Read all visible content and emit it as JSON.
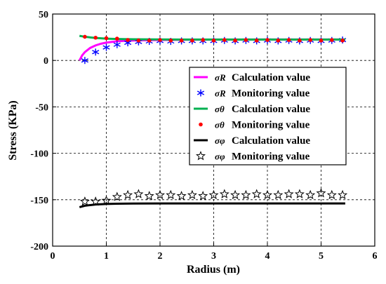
{
  "chart_data": {
    "type": "line",
    "title": "",
    "xlabel": "Radius (m)",
    "ylabel": "Stress (KPa)",
    "xlim": [
      0,
      6
    ],
    "ylim": [
      -200,
      50
    ],
    "xticks": [
      "0",
      "1",
      "2",
      "3",
      "4",
      "5",
      "6"
    ],
    "yticks": [
      "50",
      "0",
      "-50",
      "-100",
      "-150",
      "-200"
    ],
    "grid": true,
    "legend_position": "right",
    "series": [
      {
        "symbol": "σR",
        "name": "Calculation value",
        "style": "line",
        "color": "#ff00ff",
        "x": [
          0.5,
          0.55,
          0.6,
          0.7,
          0.8,
          0.9,
          1.0,
          1.2,
          1.4,
          1.6,
          2.0,
          2.5,
          3.0,
          4.0,
          5.0,
          5.45
        ],
        "y": [
          0,
          5.5,
          9,
          13.5,
          16.2,
          18,
          19.2,
          20.6,
          21.3,
          21.7,
          22.1,
          22.3,
          22.4,
          22.5,
          22.5,
          22.5
        ]
      },
      {
        "symbol": "σR",
        "name": "Monitoring value",
        "style": "marker-asterisk",
        "color": "#0000ff",
        "x": [
          0.6,
          0.8,
          1.0,
          1.2,
          1.4,
          1.6,
          1.8,
          2.0,
          2.2,
          2.4,
          2.6,
          2.8,
          3.0,
          3.2,
          3.4,
          3.6,
          3.8,
          4.0,
          4.2,
          4.4,
          4.6,
          4.8,
          5.0,
          5.2,
          5.4
        ],
        "y": [
          0,
          9,
          14,
          17,
          19,
          20,
          20.5,
          21,
          20.5,
          21,
          21,
          21,
          21,
          21.5,
          21,
          21.5,
          21,
          21.5,
          21,
          21.5,
          21,
          21.5,
          21,
          21.5,
          22
        ]
      },
      {
        "symbol": "σθ",
        "name": "Calculation value",
        "style": "line",
        "color": "#00b050",
        "x": [
          0.5,
          0.6,
          0.7,
          0.8,
          1.0,
          1.2,
          1.5,
          2.0,
          3.0,
          4.0,
          5.0,
          5.45
        ],
        "y": [
          26.5,
          25.5,
          24.8,
          24.2,
          23.5,
          23.1,
          22.8,
          22.6,
          22.5,
          22.5,
          22.5,
          22.5
        ]
      },
      {
        "symbol": "σθ",
        "name": "Monitoring value",
        "style": "marker-dot",
        "color": "#ff0000",
        "x": [
          0.6,
          0.8,
          1.0,
          1.2,
          1.4,
          1.6,
          1.8,
          2.0,
          2.2,
          2.4,
          2.6,
          2.8,
          3.0,
          3.2,
          3.4,
          3.6,
          3.8,
          4.0,
          4.2,
          4.4,
          4.6,
          4.8,
          5.0,
          5.2,
          5.4
        ],
        "y": [
          25.5,
          24.5,
          24,
          23.5,
          22,
          21.5,
          21.5,
          22,
          21.5,
          21.5,
          21.5,
          22,
          21.5,
          22,
          21.5,
          22,
          21.5,
          22,
          21.5,
          22,
          21.5,
          22,
          21.5,
          22,
          21.5
        ]
      },
      {
        "symbol": "σφ",
        "name": "Calculation value",
        "style": "line",
        "color": "#000000",
        "x": [
          0.5,
          0.6,
          0.7,
          0.8,
          1.0,
          1.2,
          1.5,
          2.0,
          3.0,
          4.0,
          5.0,
          5.45
        ],
        "y": [
          -158,
          -156.5,
          -155.8,
          -155.2,
          -154.6,
          -154.3,
          -154.1,
          -154,
          -154,
          -154,
          -154,
          -154
        ]
      },
      {
        "symbol": "σφ",
        "name": "Monitoring value",
        "style": "marker-star",
        "color": "#000000",
        "x": [
          0.6,
          0.8,
          1.0,
          1.2,
          1.4,
          1.6,
          1.8,
          2.0,
          2.2,
          2.4,
          2.6,
          2.8,
          3.0,
          3.2,
          3.4,
          3.6,
          3.8,
          4.0,
          4.2,
          4.4,
          4.6,
          4.8,
          5.0,
          5.2,
          5.4
        ],
        "y": [
          -152,
          -152,
          -151,
          -147,
          -145,
          -144,
          -146,
          -145,
          -145,
          -146,
          -145,
          -146,
          -145,
          -144,
          -145,
          -145,
          -144,
          -145,
          -145,
          -144,
          -144,
          -145,
          -143,
          -145,
          -145
        ]
      }
    ]
  }
}
